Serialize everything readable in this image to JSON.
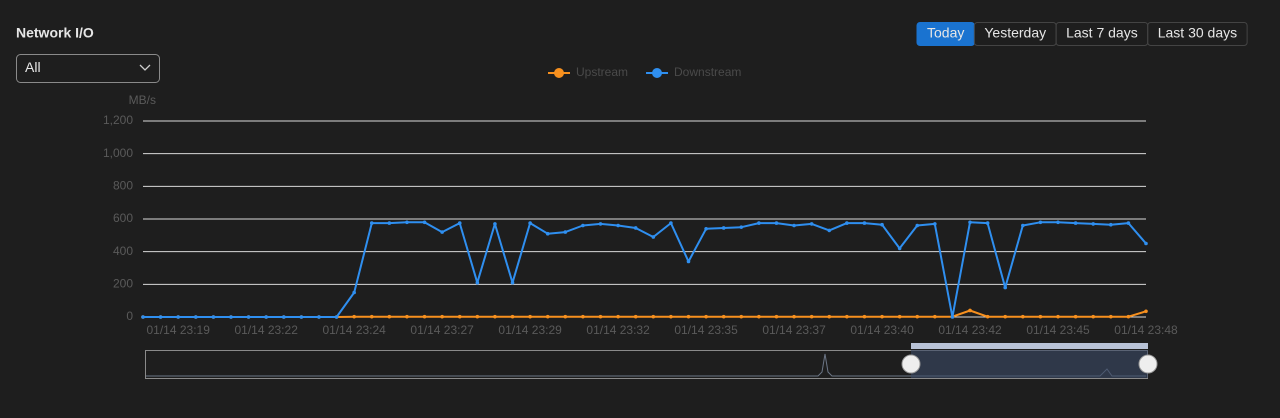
{
  "header": {
    "title": "Network I/O",
    "filter": "All"
  },
  "tabs": [
    "Today",
    "Yesterday",
    "Last 7 days",
    "Last 30 days"
  ],
  "active_tab": 0,
  "chart_data": {
    "type": "line",
    "y_label": "MB/s",
    "categories": [
      null,
      null,
      "01/14 23:19",
      null,
      null,
      null,
      null,
      "01/14 23:22",
      null,
      null,
      null,
      null,
      "01/14 23:24",
      null,
      null,
      null,
      null,
      "01/14 23:27",
      null,
      null,
      null,
      null,
      "01/14 23:29",
      null,
      null,
      null,
      null,
      "01/14 23:32",
      null,
      null,
      null,
      null,
      "01/14 23:35",
      null,
      null,
      null,
      null,
      "01/14 23:37",
      null,
      null,
      null,
      null,
      "01/14 23:40",
      null,
      null,
      null,
      null,
      "01/14 23:42",
      null,
      null,
      null,
      null,
      "01/14 23:45",
      null,
      null,
      null,
      null,
      "01/14 23:48"
    ],
    "series": [
      {
        "name": "Upstream",
        "color": "#f7901e",
        "values": [
          0,
          0,
          0,
          0,
          0,
          0,
          0,
          0,
          0,
          0,
          0,
          0,
          2,
          2,
          2,
          2,
          2,
          2,
          2,
          2,
          2,
          2,
          2,
          2,
          2,
          2,
          2,
          2,
          2,
          2,
          2,
          2,
          2,
          2,
          2,
          2,
          2,
          2,
          2,
          2,
          2,
          2,
          2,
          2,
          2,
          2,
          2,
          40,
          2,
          2,
          2,
          2,
          2,
          2,
          2,
          2,
          2,
          35
        ]
      },
      {
        "name": "Downstream",
        "color": "#2f8ff0",
        "values": [
          0,
          0,
          0,
          0,
          0,
          0,
          0,
          0,
          0,
          0,
          0,
          0,
          150,
          575,
          575,
          580,
          580,
          520,
          575,
          210,
          570,
          210,
          575,
          510,
          520,
          560,
          570,
          560,
          545,
          490,
          575,
          340,
          540,
          545,
          550,
          575,
          575,
          560,
          570,
          530,
          575,
          575,
          565,
          420,
          560,
          570,
          0,
          580,
          575,
          180,
          560,
          580,
          580,
          575,
          570,
          565,
          575,
          450
        ]
      }
    ],
    "ylim": [
      0,
      1200
    ],
    "yticks": [
      0,
      200,
      400,
      600,
      800,
      {
        "value": 1000,
        "label": "1,000"
      },
      {
        "value": 1200,
        "label": "1,200"
      }
    ],
    "grid": true
  }
}
